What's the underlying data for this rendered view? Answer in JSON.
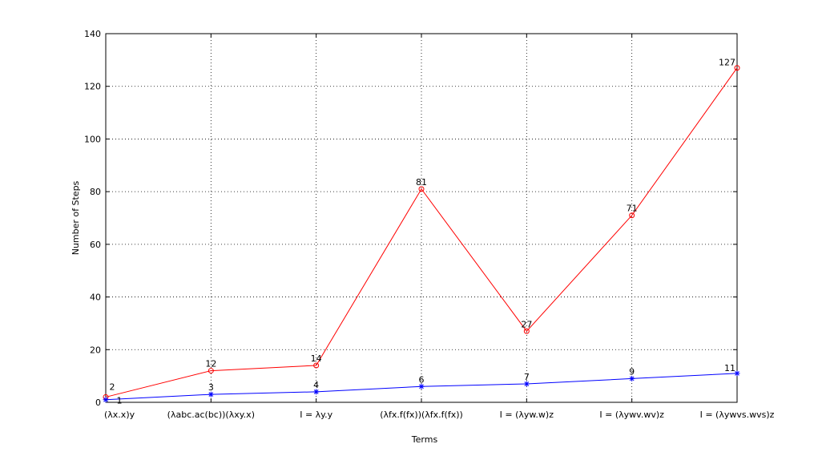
{
  "chart_data": {
    "type": "line",
    "xlabel": "Terms",
    "ylabel": "Number of Steps",
    "categories": [
      "(λx.x)y",
      "(λabc.ac(bc))(λxy.x)",
      "I = λy.y",
      "(λfx.f(fx))(λfx.f(fx))",
      "I = (λyw.w)z",
      "I = (λywv.wv)z",
      "I = (λywvs.wvs)z"
    ],
    "series": [
      {
        "color": "#ff0000",
        "marker": "circle",
        "values": [
          2,
          12,
          14,
          81,
          27,
          71,
          127
        ]
      },
      {
        "color": "#0000ff",
        "marker": "star",
        "values": [
          1,
          3,
          4,
          6,
          7,
          9,
          11
        ]
      }
    ],
    "ylim": [
      0,
      140
    ],
    "yticks": [
      0,
      20,
      40,
      60,
      80,
      100,
      120,
      140
    ],
    "grid": true
  }
}
